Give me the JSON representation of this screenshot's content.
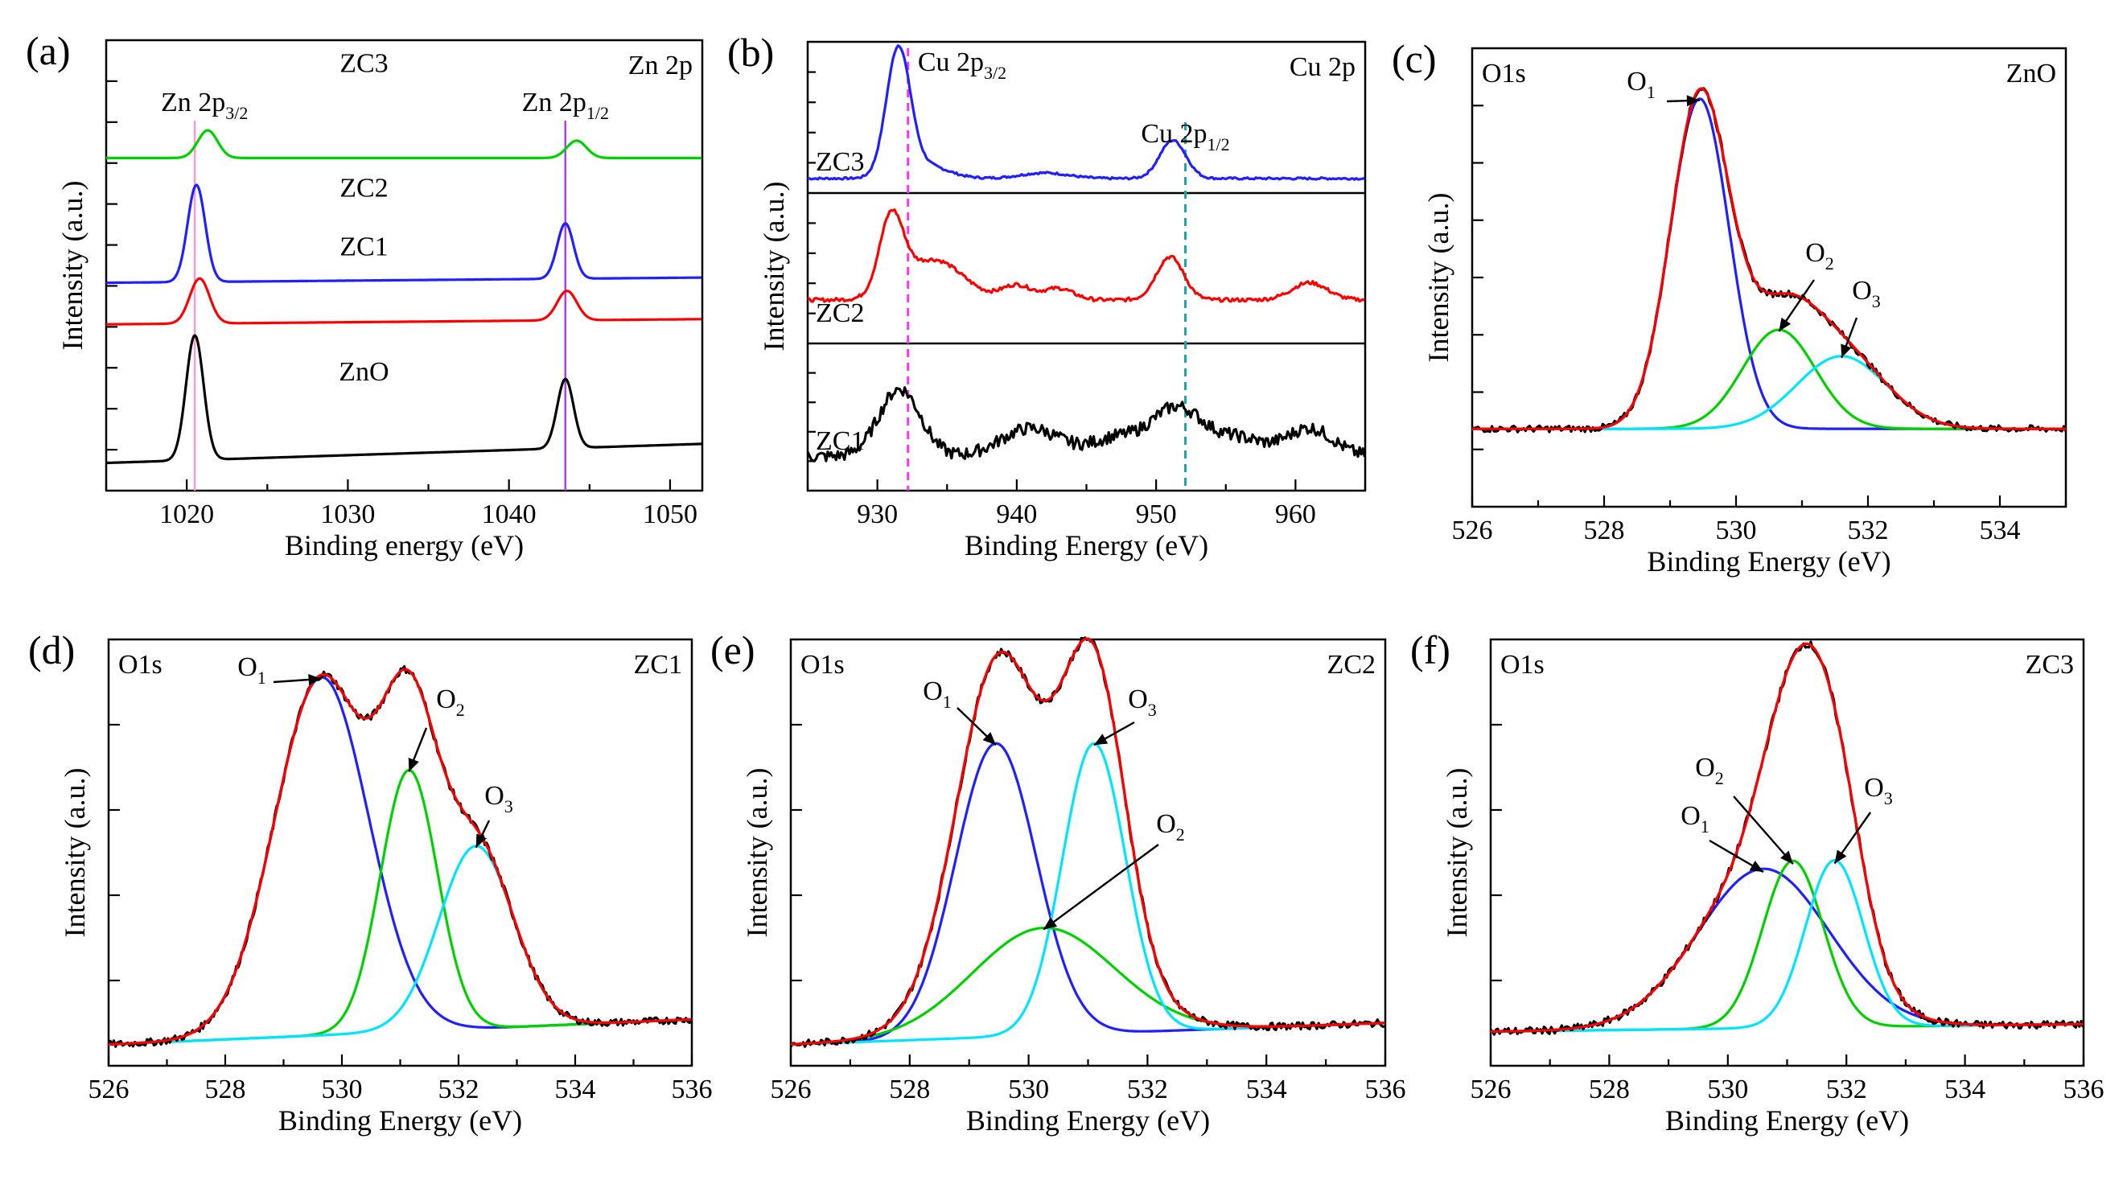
{
  "chart_data": [
    {
      "panel": "(a)",
      "type": "line",
      "element": "Zn 2p",
      "xlabel": "Binding energy (eV)",
      "ylabel": "Intensity (a.u.)",
      "xlim": [
        1015,
        1052
      ],
      "ylim": [
        0,
        13
      ],
      "xticks": [
        1020,
        1030,
        1040,
        1050
      ],
      "series": [
        {
          "name": "ZnO",
          "offset": 0,
          "base": 0,
          "base_slope": 0.0,
          "peaks": [
            [
              1020.5,
              3.6,
              0.8
            ],
            [
              1043.5,
              2.0,
              0.75
            ]
          ]
        },
        {
          "name": "ZC1",
          "offset": 4.0,
          "base": 0,
          "base_slope": 0.0,
          "peaks": [
            [
              1020.8,
              1.3,
              0.9
            ],
            [
              1043.6,
              0.85,
              0.9
            ]
          ]
        },
        {
          "name": "ZC2",
          "offset": 5.2,
          "base": 0,
          "base_slope": 0.0,
          "peaks": [
            [
              1020.6,
              2.8,
              0.8
            ],
            [
              1043.5,
              1.6,
              0.75
            ]
          ]
        },
        {
          "name": "ZC3",
          "offset": 8.8,
          "base": 0,
          "base_slope": 0.0,
          "peaks": [
            [
              1021.3,
              0.8,
              0.9
            ],
            [
              1044.2,
              0.5,
              0.9
            ]
          ]
        }
      ],
      "trace_labels": [
        "ZC3",
        "ZC2",
        "ZC1",
        "ZnO"
      ],
      "peak_labels": [
        {
          "main": "Zn 2p",
          "sub": "3/2",
          "x": 1020.5
        },
        {
          "main": "Zn 2p",
          "sub": "1/2",
          "x": 1043.5
        }
      ],
      "ref_lines": [
        1020.5,
        1043.5
      ]
    },
    {
      "panel": "(b)",
      "type": "line",
      "element": "Cu 2p",
      "xlabel": "Binding Energy (eV)",
      "ylabel": "Intensity (a.u.)",
      "xlim": [
        925,
        965
      ],
      "xticks": [
        930,
        940,
        950,
        960
      ],
      "series": [
        {
          "name": "ZC3"
        },
        {
          "name": "ZC2"
        },
        {
          "name": "ZC1"
        }
      ],
      "peak_labels": [
        {
          "main": "Cu 2p",
          "sub": "3/2",
          "x": 932.2
        },
        {
          "main": "Cu 2p",
          "sub": "1/2",
          "x": 952.1
        }
      ],
      "ref_lines": [
        932.2,
        952.1
      ]
    },
    {
      "panel": "(c)",
      "type": "line",
      "sample": "ZnO",
      "core_level": "O1s",
      "xlabel": "Binding Energy (eV)",
      "ylabel": "Intensity (a.u.)",
      "xlim": [
        526,
        535
      ],
      "xticks": [
        526,
        528,
        530,
        532,
        534
      ],
      "components": [
        {
          "name": "O1",
          "sub": "1",
          "center": 529.45,
          "height": 1.0,
          "fwhm": 1.05
        },
        {
          "name": "O2",
          "sub": "2",
          "center": 530.65,
          "height": 0.3,
          "fwhm": 1.3
        },
        {
          "name": "O3",
          "sub": "3",
          "center": 531.6,
          "height": 0.22,
          "fwhm": 1.6
        }
      ]
    },
    {
      "panel": "(d)",
      "type": "line",
      "sample": "ZC1",
      "core_level": "O1s",
      "xlabel": "Binding Energy (eV)",
      "ylabel": "Intensity (a.u.)",
      "xlim": [
        526,
        536
      ],
      "xticks": [
        526,
        528,
        530,
        532,
        534,
        536
      ],
      "components": [
        {
          "name": "O1",
          "sub": "1",
          "center": 529.65,
          "height": 1.0,
          "fwhm": 1.9
        },
        {
          "name": "O2",
          "sub": "2",
          "center": 531.15,
          "height": 0.73,
          "fwhm": 1.15
        },
        {
          "name": "O3",
          "sub": "3",
          "center": 532.3,
          "height": 0.51,
          "fwhm": 1.5
        }
      ]
    },
    {
      "panel": "(e)",
      "type": "line",
      "sample": "ZC2",
      "core_level": "O1s",
      "xlabel": "Binding Energy (eV)",
      "ylabel": "Intensity (a.u.)",
      "xlim": [
        526,
        536
      ],
      "xticks": [
        526,
        528,
        530,
        532,
        534,
        536
      ],
      "components": [
        {
          "name": "O1",
          "sub": "1",
          "center": 529.45,
          "height": 0.82,
          "fwhm": 1.6
        },
        {
          "name": "O2",
          "sub": "2",
          "center": 530.25,
          "height": 0.3,
          "fwhm": 2.8
        },
        {
          "name": "O3",
          "sub": "3",
          "center": 531.1,
          "height": 0.81,
          "fwhm": 1.25
        }
      ]
    },
    {
      "panel": "(f)",
      "type": "line",
      "sample": "ZC3",
      "core_level": "O1s",
      "xlabel": "Binding Energy (eV)",
      "ylabel": "Intensity (a.u.)",
      "xlim": [
        526,
        536
      ],
      "xticks": [
        526,
        528,
        530,
        532,
        534,
        536
      ],
      "components": [
        {
          "name": "O1",
          "sub": "1",
          "center": 530.6,
          "height": 0.42,
          "fwhm": 2.6
        },
        {
          "name": "O2",
          "sub": "2",
          "center": 531.1,
          "height": 0.44,
          "fwhm": 1.2
        },
        {
          "name": "O3",
          "sub": "3",
          "center": 531.8,
          "height": 0.44,
          "fwhm": 1.15
        }
      ]
    }
  ],
  "colors": {
    "black": "#000000",
    "red": "#ff0000",
    "green": "#00d200",
    "blue": "#1f1fff",
    "cyan": "#00e5ff",
    "pink": "#ff99cc",
    "violet": "#b040e8",
    "magenta": "#ff30ff",
    "teal": "#1aa8a8"
  }
}
